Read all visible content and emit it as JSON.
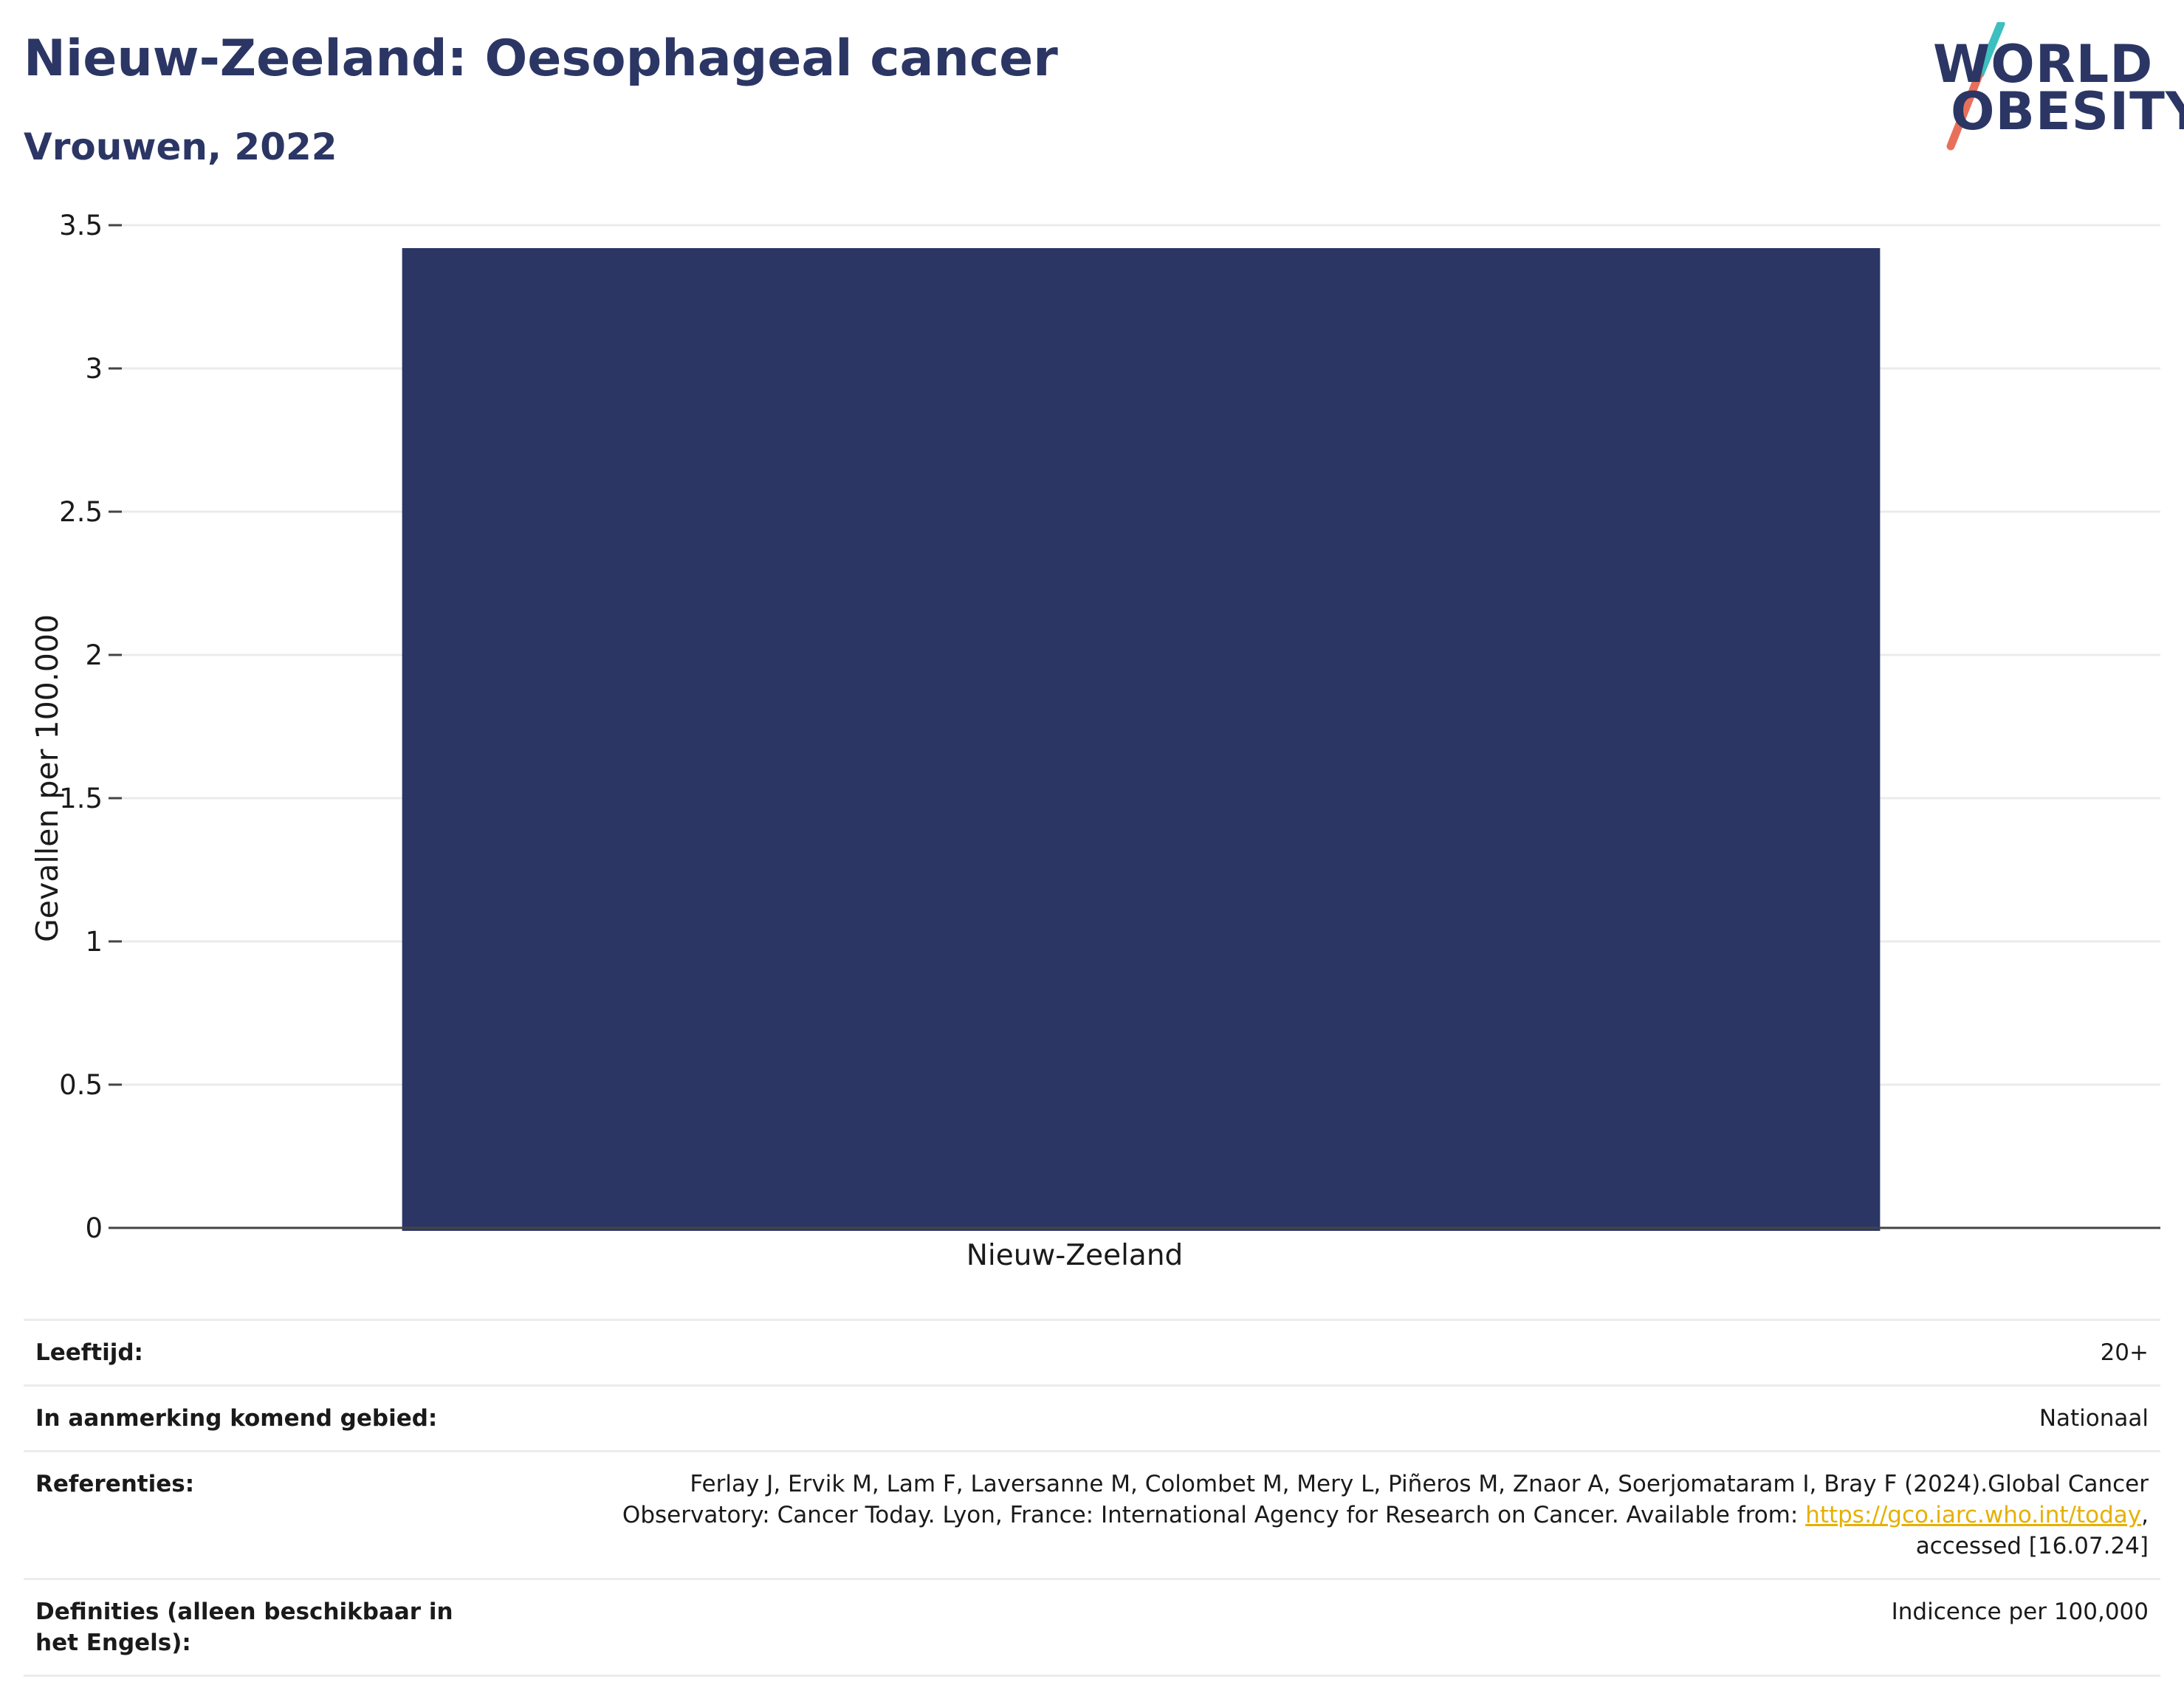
{
  "header": {
    "title": "Nieuw-Zeeland: Oesophageal cancer",
    "subtitle": "Vrouwen, 2022"
  },
  "logo": {
    "line1": "WORLD",
    "line2": "OBESITY",
    "colors": {
      "text": "#2b3664",
      "slash_top": "#3bbfbf",
      "slash_bottom": "#e8705a"
    }
  },
  "chart_data": {
    "type": "bar",
    "categories": [
      "Nieuw-Zeeland"
    ],
    "values": [
      3.42
    ],
    "ylabel": "Gevallen per 100.000",
    "xlabel": "",
    "ylim": [
      0,
      3.5
    ],
    "yticks": [
      0,
      0.5,
      1,
      1.5,
      2,
      2.5,
      3,
      3.5
    ],
    "ytick_labels": [
      "0",
      "0.5",
      "1",
      "1.5",
      "2",
      "2.5",
      "3",
      "3.5"
    ],
    "grid": true,
    "bar_color": "#2b3664"
  },
  "info": {
    "age": {
      "label": "Leeftijd:",
      "value": "20+"
    },
    "area": {
      "label": "In aanmerking komend gebied:",
      "value": "Nationaal"
    },
    "references": {
      "label": "Referenties:",
      "line1": "Ferlay J, Ervik M, Lam F, Laversanne M, Colombet M, Mery L, Piñeros M, Znaor A, Soerjomataram I, Bray F (2024).Global Cancer",
      "line2_prefix": "Observatory: Cancer Today. Lyon, France: International Agency for Research on Cancer. Available from: ",
      "link": "https://gco.iarc.who.int/today",
      "line2_suffix": ",",
      "line3": "accessed [16.07.24]"
    },
    "definitions": {
      "label": "Definities (alleen beschikbaar in het Engels):",
      "value": "Indicence per 100,000"
    }
  }
}
